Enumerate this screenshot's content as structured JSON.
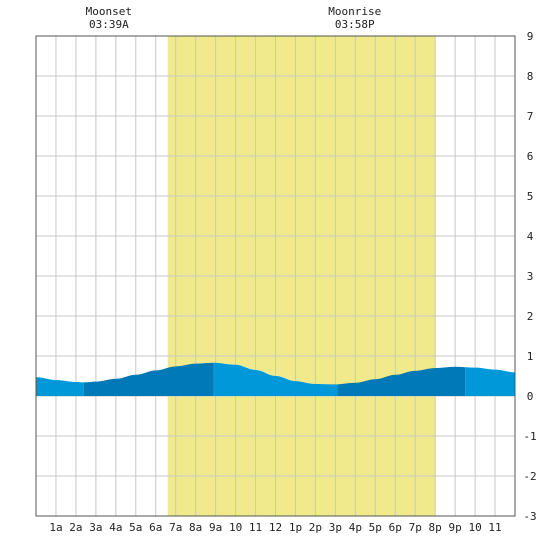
{
  "chart_data": {
    "type": "area",
    "title": "",
    "xlabel": "",
    "ylabel": "",
    "xlim": [
      0,
      24
    ],
    "ylim": [
      -3,
      9
    ],
    "y_ticks": [
      9,
      8,
      7,
      6,
      5,
      4,
      3,
      2,
      1,
      0,
      -1,
      -2,
      -3
    ],
    "x_tick_labels": [
      "1a",
      "2a",
      "3a",
      "4a",
      "5a",
      "6a",
      "7a",
      "8a",
      "9a",
      "10",
      "11",
      "12",
      "1p",
      "2p",
      "3p",
      "4p",
      "5p",
      "6p",
      "7p",
      "8p",
      "9p",
      "10",
      "11"
    ],
    "grid": true,
    "daylight_hours": [
      6.6,
      20.0
    ],
    "moon_events": [
      {
        "label": "Moonset",
        "time": "03:39A",
        "hour": 3.65
      },
      {
        "label": "Moonrise",
        "time": "03:58P",
        "hour": 15.97
      }
    ],
    "series": [
      {
        "values": [
          {
            "x": 0,
            "y": 0.47
          },
          {
            "x": 1,
            "y": 0.4
          },
          {
            "x": 2,
            "y": 0.35
          },
          {
            "x": 2.4,
            "y": 0.34
          },
          {
            "x": 3,
            "y": 0.36
          },
          {
            "x": 4,
            "y": 0.43
          },
          {
            "x": 5,
            "y": 0.53
          },
          {
            "x": 6,
            "y": 0.64
          },
          {
            "x": 7,
            "y": 0.74
          },
          {
            "x": 8,
            "y": 0.81
          },
          {
            "x": 8.9,
            "y": 0.83
          },
          {
            "x": 10,
            "y": 0.78
          },
          {
            "x": 11,
            "y": 0.65
          },
          {
            "x": 12,
            "y": 0.5
          },
          {
            "x": 13,
            "y": 0.37
          },
          {
            "x": 14,
            "y": 0.3
          },
          {
            "x": 15,
            "y": 0.29
          },
          {
            "x": 16,
            "y": 0.33
          },
          {
            "x": 17,
            "y": 0.42
          },
          {
            "x": 18,
            "y": 0.53
          },
          {
            "x": 19,
            "y": 0.63
          },
          {
            "x": 20,
            "y": 0.7
          },
          {
            "x": 21,
            "y": 0.73
          },
          {
            "x": 22,
            "y": 0.71
          },
          {
            "x": 23,
            "y": 0.66
          },
          {
            "x": 24,
            "y": 0.59
          }
        ]
      }
    ],
    "tide_bands": [
      {
        "from": 0,
        "to": 2.4,
        "shade": "light"
      },
      {
        "from": 2.4,
        "to": 8.9,
        "shade": "dark"
      },
      {
        "from": 8.9,
        "to": 15.1,
        "shade": "light"
      },
      {
        "from": 15.1,
        "to": 21.5,
        "shade": "dark"
      },
      {
        "from": 21.5,
        "to": 24,
        "shade": "light"
      }
    ],
    "colors": {
      "daylight": "#f0ea8c",
      "water_light": "#0098d8",
      "water_dark": "#0079b8",
      "grid": "#c8c8c8",
      "frame": "#555555"
    }
  }
}
